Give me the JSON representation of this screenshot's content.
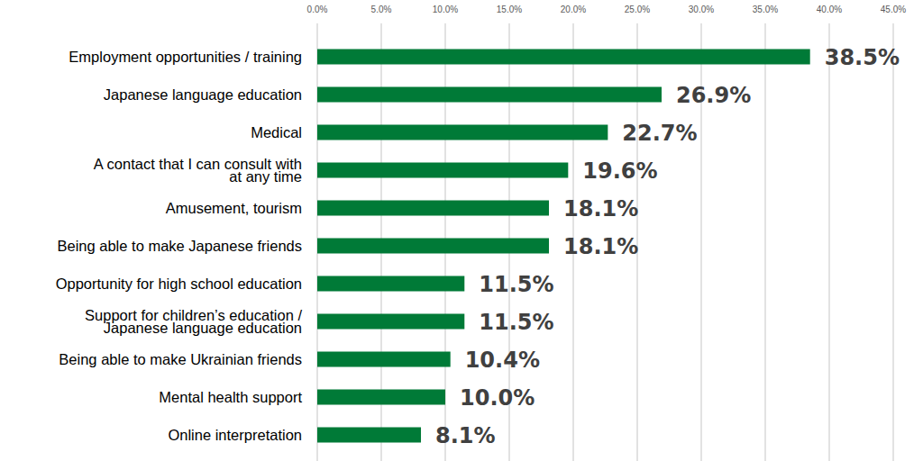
{
  "chart_data": {
    "type": "bar",
    "orientation": "horizontal",
    "categories": [
      "Employment opportunities / training",
      "Japanese language education",
      "Medical",
      "A contact that I can consult with\nat any time",
      "Amusement, tourism",
      "Being able to make Japanese friends",
      "Opportunity for high school education",
      "Support for children’s education /\nJapanese language education",
      "Being able to make Ukrainian friends",
      "Mental health support",
      "Online interpretation"
    ],
    "values": [
      38.5,
      26.9,
      22.7,
      19.6,
      18.1,
      18.1,
      11.5,
      11.5,
      10.4,
      10.0,
      8.1
    ],
    "value_labels": [
      "38.5%",
      "26.9%",
      "22.7%",
      "19.6%",
      "18.1%",
      "18.1%",
      "11.5%",
      "11.5%",
      "10.4%",
      "10.0%",
      "8.1%"
    ],
    "color": "#007a37",
    "xlim": [
      0,
      45
    ],
    "xticks": [
      {
        "value": 0,
        "label": "0.0%"
      },
      {
        "value": 5,
        "label": "5.0%"
      },
      {
        "value": 10,
        "label": "10.0%"
      },
      {
        "value": 15,
        "label": "15.0%"
      },
      {
        "value": 20,
        "label": "20.0%"
      },
      {
        "value": 25,
        "label": "25.0%"
      },
      {
        "value": 30,
        "label": "30.0%"
      },
      {
        "value": 35,
        "label": "35.0%"
      },
      {
        "value": 40,
        "label": "40.0%"
      },
      {
        "value": 45,
        "label": "45.0%"
      }
    ],
    "grid": true,
    "data_labels": true
  }
}
